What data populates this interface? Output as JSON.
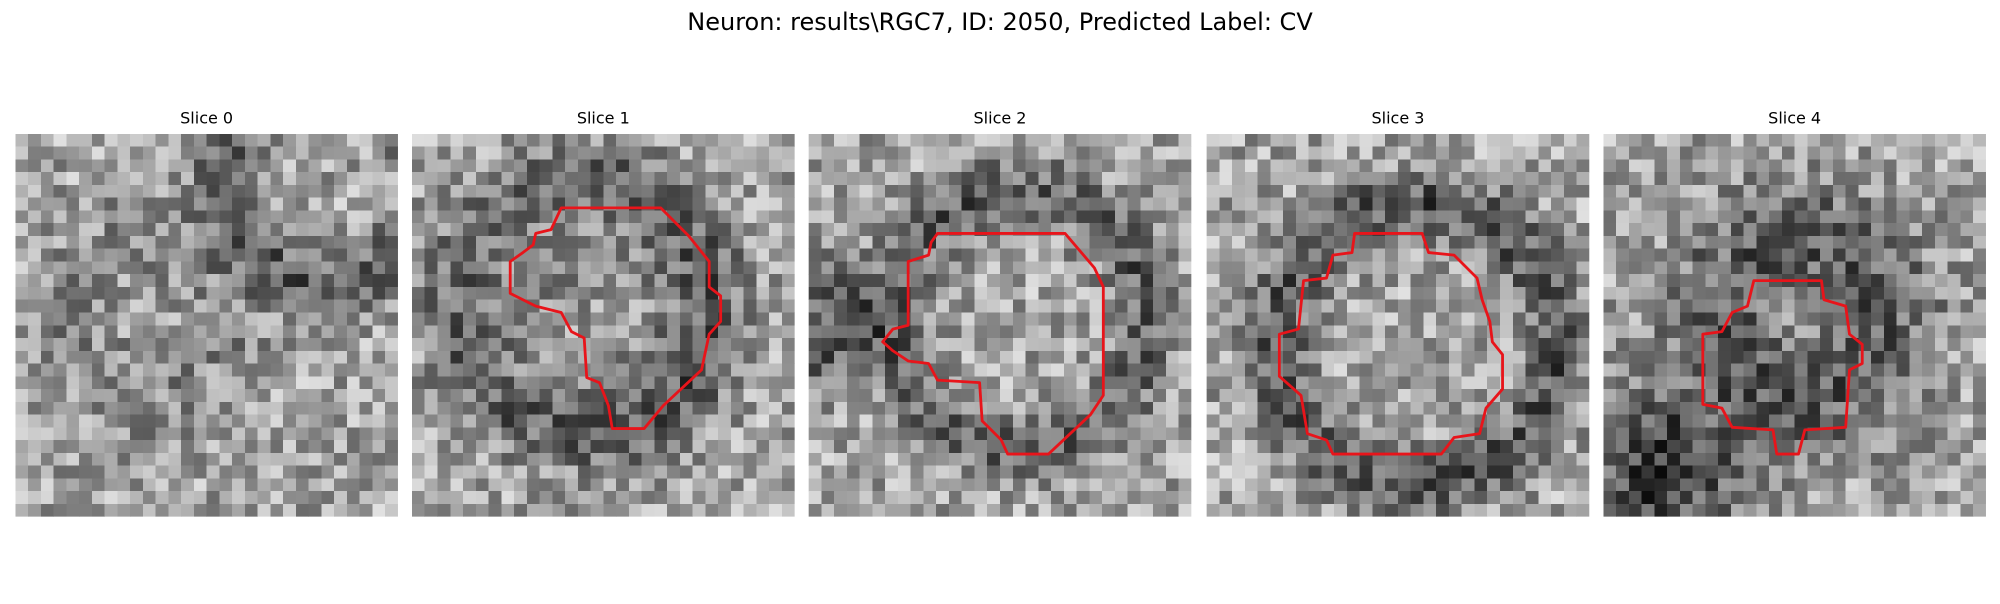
{
  "title": "Neuron: results\\RGC7, ID: 2050, Predicted Label: CV",
  "panels": [
    {
      "title": "Slice 0"
    },
    {
      "title": "Slice 1"
    },
    {
      "title": "Slice 2"
    },
    {
      "title": "Slice 3"
    },
    {
      "title": "Slice 4"
    }
  ]
}
